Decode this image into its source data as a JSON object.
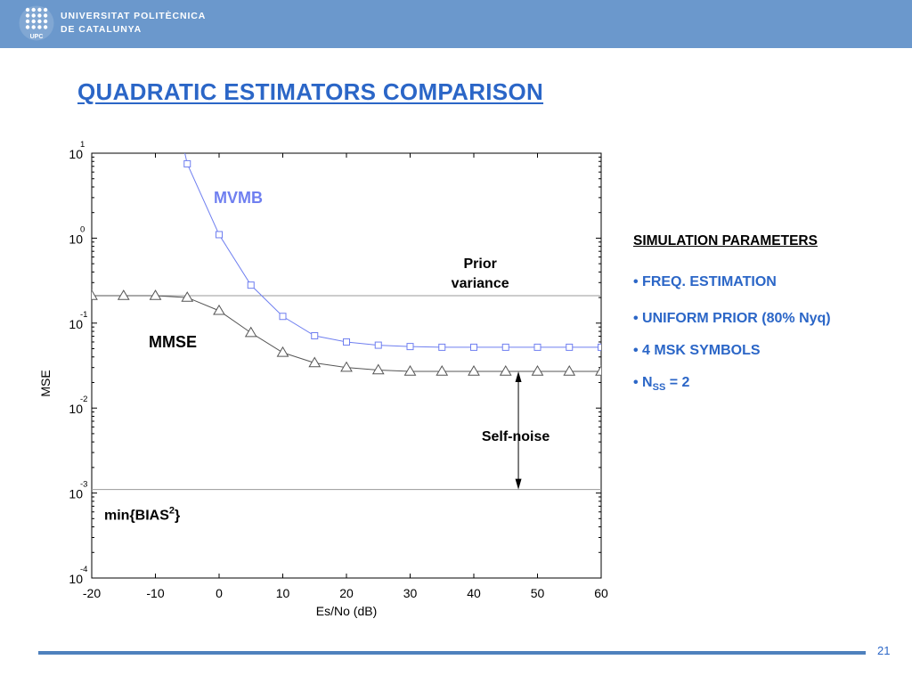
{
  "header": {
    "logo_line1": "UNIVERSITAT POLITÈCNICA",
    "logo_line2": "DE CATALUNYA",
    "logo_badge": "UPC",
    "brand_color": "#6b98cc"
  },
  "slide": {
    "title": "QUADRATIC ESTIMATORS COMPARISON",
    "page_number": "21"
  },
  "params": {
    "title": "SIMULATION PARAMETERS",
    "items": [
      {
        "text": "• FREQ. ESTIMATION"
      },
      {
        "text": "• UNIFORM PRIOR (80% Nyq)"
      },
      {
        "text": "• 4 MSK SYMBOLS"
      },
      {
        "prefix": "• N",
        "sub": "SS",
        "suffix": " = 2"
      }
    ]
  },
  "chart_data": {
    "type": "line",
    "xlabel": "Es/No (dB)",
    "ylabel": "MSE",
    "xlim": [
      -20,
      60
    ],
    "ylim": [
      0.0001,
      10
    ],
    "yscale": "log",
    "x_ticks": [
      "-20",
      "-10",
      "0",
      "10",
      "20",
      "30",
      "40",
      "50",
      "60"
    ],
    "y_ticks": [
      {
        "base": "10",
        "exp": "1"
      },
      {
        "base": "10",
        "exp": "0"
      },
      {
        "base": "10",
        "exp": "-1"
      },
      {
        "base": "10",
        "exp": "-2"
      },
      {
        "base": "10",
        "exp": "-3"
      },
      {
        "base": "10",
        "exp": "-4"
      }
    ],
    "grid": false,
    "series": [
      {
        "name": "MVMB",
        "color": "#6f7ff0",
        "marker": "square",
        "x": [
          -5,
          0,
          5,
          10,
          15,
          20,
          25,
          30,
          35,
          40,
          45,
          50,
          55,
          60
        ],
        "y": [
          7.5,
          1.1,
          0.28,
          0.12,
          0.071,
          0.06,
          0.055,
          0.053,
          0.052,
          0.052,
          0.052,
          0.052,
          0.052,
          0.052
        ]
      },
      {
        "name": "MMSE",
        "color": "#555555",
        "marker": "triangle",
        "x": [
          -20,
          -15,
          -10,
          -5,
          0,
          5,
          10,
          15,
          20,
          25,
          30,
          35,
          40,
          45,
          50,
          55,
          60
        ],
        "y": [
          0.21,
          0.21,
          0.21,
          0.2,
          0.14,
          0.077,
          0.045,
          0.034,
          0.03,
          0.028,
          0.027,
          0.027,
          0.027,
          0.027,
          0.027,
          0.027,
          0.027
        ]
      }
    ],
    "reference_lines": [
      {
        "y": 0.21,
        "label_line1": "Prior",
        "label_line2": "variance"
      },
      {
        "y": 0.0011,
        "label": "min{BIAS",
        "label_sup": "2",
        "label_end": "}"
      }
    ],
    "annotations": [
      {
        "text": "Self-noise",
        "arrow_x": 47,
        "arrow_y_top": 0.027,
        "arrow_y_bottom": 0.0011
      }
    ]
  }
}
